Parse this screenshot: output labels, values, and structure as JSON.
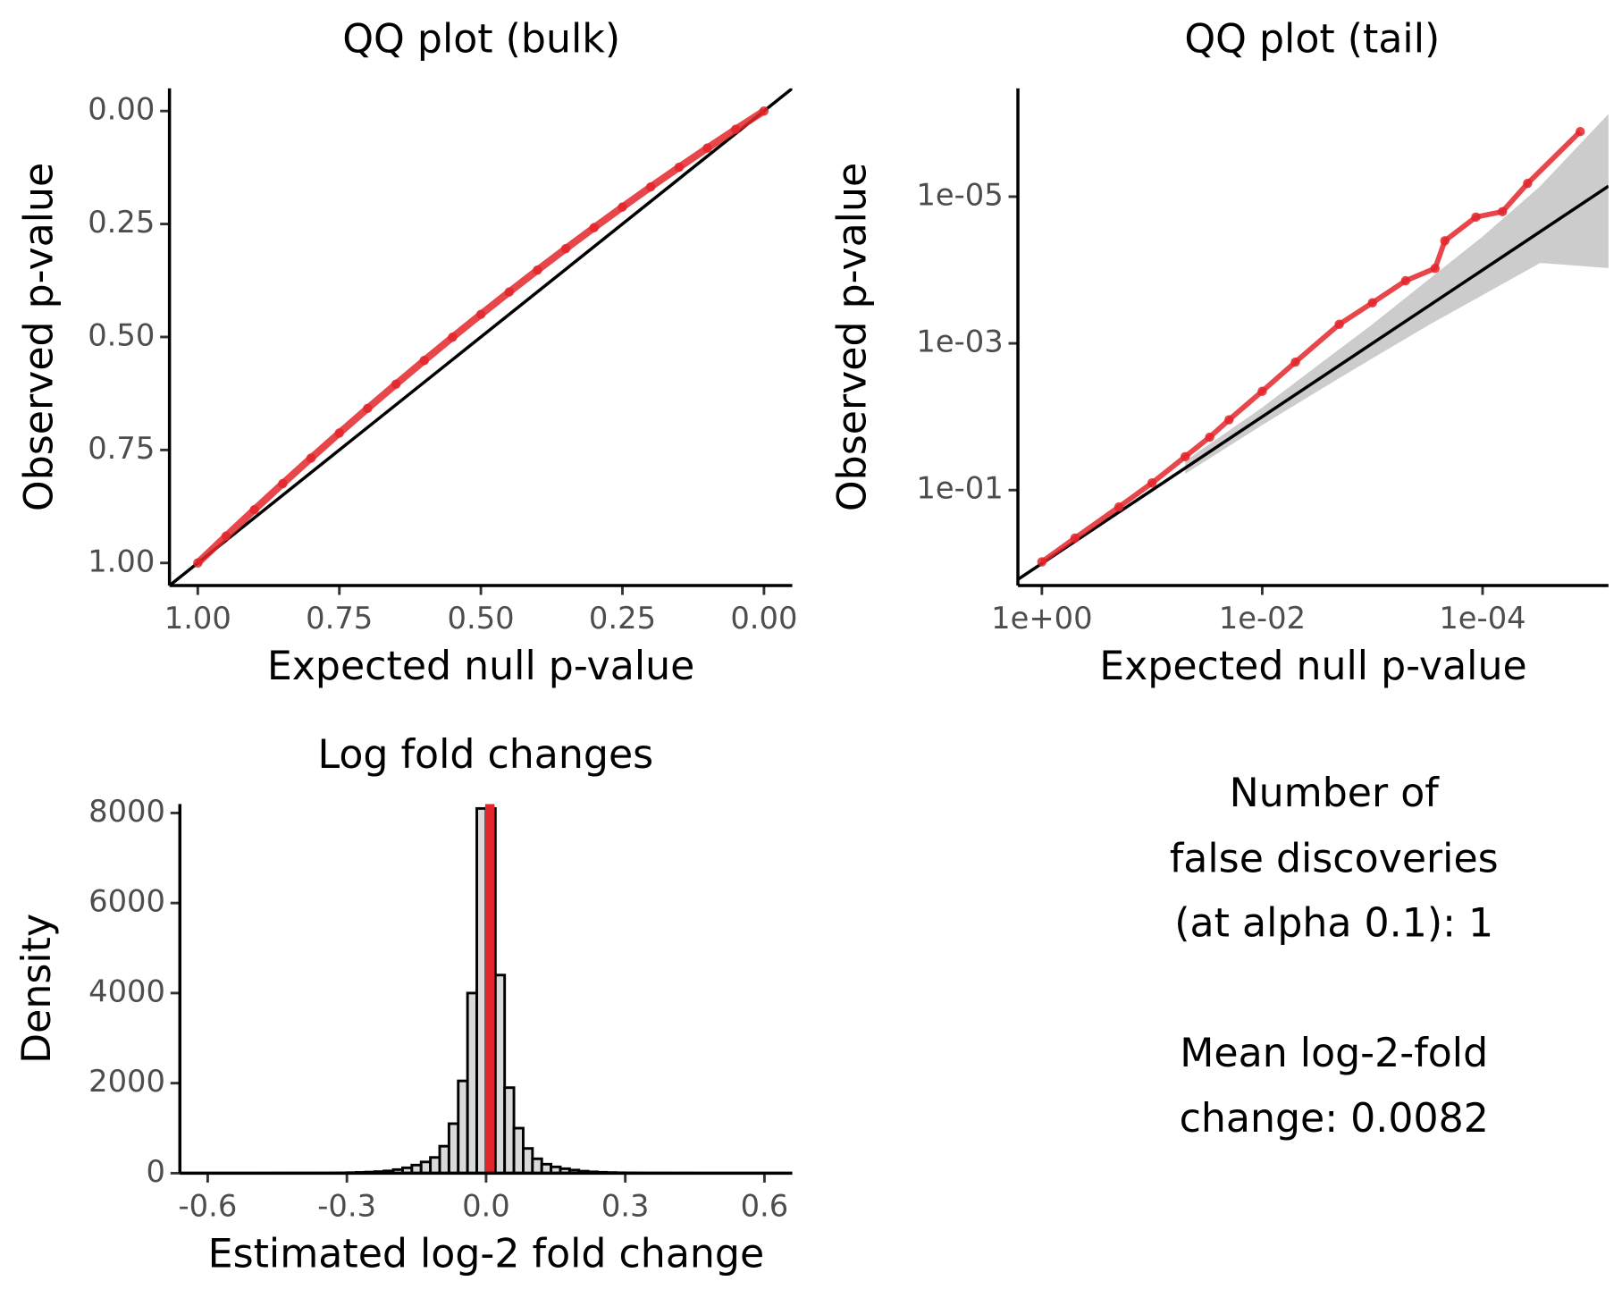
{
  "chart_data": [
    {
      "type": "scatter",
      "title": "QQ plot (bulk)",
      "x_label": "Expected null p-value",
      "y_label": "Observed p-value",
      "x": [
        1,
        0.95,
        0.9,
        0.85,
        0.8,
        0.75,
        0.7,
        0.65,
        0.6,
        0.55,
        0.5,
        0.45,
        0.4,
        0.35,
        0.3,
        0.25,
        0.2,
        0.15,
        0.1,
        0.05,
        0
      ],
      "values": [
        1,
        0.9405,
        0.882,
        0.8245,
        0.768,
        0.7125,
        0.658,
        0.6045,
        0.552,
        0.5005,
        0.45,
        0.4005,
        0.352,
        0.3045,
        0.258,
        0.2125,
        0.168,
        0.1245,
        0.082,
        0.0405,
        0
      ],
      "color": "#e3262b",
      "identity_line": true,
      "xlim": [
        1.05,
        -0.05
      ],
      "ylim": [
        1.05,
        -0.05
      ],
      "xticks": [
        {
          "value": 1,
          "label": "1.00"
        },
        0.75,
        {
          "value": 0.5,
          "label": "0.50"
        },
        0.25,
        {
          "value": 0,
          "label": "0.00"
        }
      ],
      "yticks": [
        {
          "value": 0,
          "label": "0.00"
        },
        0.25,
        {
          "value": 0.5,
          "label": "0.50"
        },
        0.75,
        {
          "value": 1,
          "label": "1.00"
        }
      ]
    },
    {
      "type": "scatter",
      "title": "QQ plot (tail)",
      "x_label": "Expected null p-value",
      "y_label": "Observed p-value",
      "x": [
        1,
        0.5,
        0.2,
        0.1,
        0.05,
        0.03,
        0.02,
        0.01,
        0.005,
        0.002,
        0.001,
        0.0005,
        0.00027,
        0.00022,
        0.000115,
        6.6e-05,
        3.9e-05,
        1.3e-05
      ],
      "values": [
        0.95,
        0.45,
        0.17,
        0.08,
        0.035,
        0.019,
        0.011,
        0.0045,
        0.0018,
        0.00055,
        0.00028,
        0.00014,
        9.5e-05,
        4e-05,
        1.9e-05,
        1.6e-05,
        6.6e-06,
        1.3e-06
      ],
      "color": "#e3262b",
      "identity_line": true,
      "log_x": true,
      "log_y": true,
      "band": {
        "color": "#cccccc",
        "x": [
          0.05,
          0.01,
          0.003,
          0.001,
          0.0003,
          0.0001,
          3e-05,
          6.6e-06
        ],
        "low": [
          0.04,
          0.0075,
          0.0019,
          0.00055,
          0.00013,
          3.5e-05,
          7.2e-06,
          6.5e-07
        ],
        "high": [
          0.06,
          0.013,
          0.0043,
          0.0016,
          0.00055,
          0.00022,
          8e-05,
          9.5e-05
        ]
      },
      "xlim": [
        1.65,
        7.2e-06
      ],
      "ylim": [
        2.0,
        3.35e-07
      ],
      "xticks": [
        {
          "value": 1,
          "label": "1e+00"
        },
        {
          "value": 0.01,
          "label": "1e-02"
        },
        {
          "value": 0.0001,
          "label": "1e-04"
        }
      ],
      "yticks": [
        {
          "value": 0.1,
          "label": "1e-01"
        },
        {
          "value": 0.001,
          "label": "1e-03"
        },
        {
          "value": 1e-05,
          "label": "1e-05"
        }
      ]
    },
    {
      "type": "histogram",
      "title": "Log fold changes",
      "x_label": "Estimated log-2 fold change",
      "y_label": "Density",
      "bins": [
        -0.6,
        -0.58,
        -0.56,
        -0.54,
        -0.52,
        -0.5,
        -0.48,
        -0.46,
        -0.44,
        -0.42,
        -0.4,
        -0.38,
        -0.36,
        -0.34,
        -0.32,
        -0.3,
        -0.28,
        -0.26,
        -0.24,
        -0.22,
        -0.2,
        -0.18,
        -0.16,
        -0.14,
        -0.12,
        -0.1,
        -0.08,
        -0.06,
        -0.04,
        -0.02,
        0,
        0.02,
        0.04,
        0.06,
        0.08,
        0.1,
        0.12,
        0.14,
        0.16,
        0.18,
        0.2,
        0.22,
        0.24,
        0.26,
        0.28,
        0.3,
        0.32,
        0.34,
        0.36,
        0.38,
        0.4,
        0.42,
        0.44,
        0.46,
        0.48,
        0.5,
        0.52,
        0.54,
        0.56,
        0.58,
        0.6
      ],
      "values": [
        0,
        0,
        0,
        0,
        0,
        0,
        1,
        1,
        1,
        2,
        2,
        3,
        4,
        5,
        8,
        12,
        18,
        25,
        35,
        50,
        80,
        120,
        180,
        250,
        350,
        600,
        1100,
        2050,
        4000,
        8100,
        8100,
        4400,
        1900,
        1000,
        550,
        320,
        200,
        140,
        100,
        70,
        45,
        30,
        20,
        14,
        10,
        7,
        5,
        3,
        2,
        2,
        1,
        1,
        1,
        0,
        0,
        0,
        0,
        0,
        0,
        0
      ],
      "color": "#d9d9d9",
      "vline": 0.0082,
      "vline_color": "#e3262b",
      "xlim": [
        -0.66,
        0.66
      ],
      "ylim": [
        0,
        8200
      ],
      "xticks": [
        -0.6,
        -0.3,
        {
          "value": 0,
          "label": "0.0"
        },
        0.3,
        0.6
      ],
      "yticks": [
        0,
        2000,
        4000,
        6000,
        8000
      ]
    }
  ],
  "summary": {
    "paragraphs": [
      [
        "Number of",
        "false discoveries",
        "(at alpha 0.1): 1"
      ],
      [
        "Mean log-2-fold",
        "change: 0.0082"
      ]
    ]
  }
}
